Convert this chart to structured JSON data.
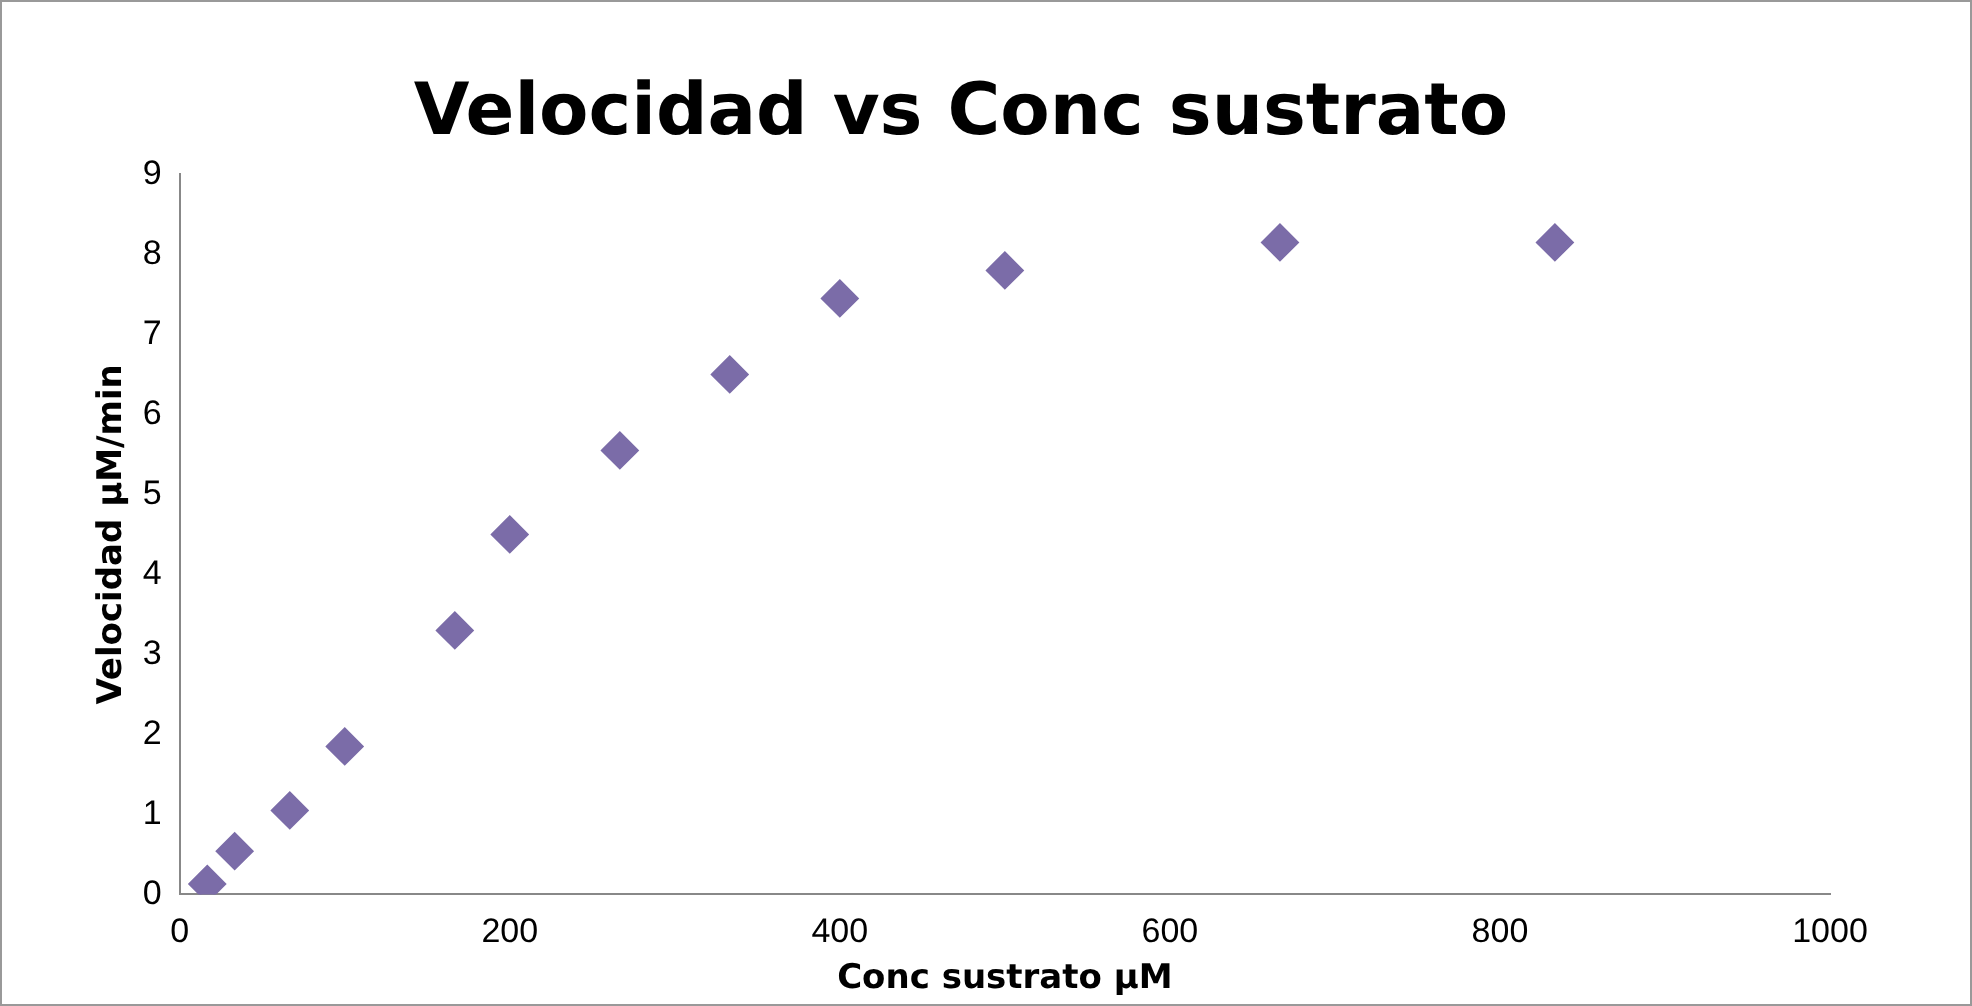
{
  "chart_data": {
    "type": "scatter",
    "title": "Velocidad vs Conc sustrato",
    "xlabel": "Conc sustrato µM",
    "ylabel": "Velocidad µM/min",
    "x": [
      16.7,
      33.3,
      66.7,
      100,
      166.7,
      200,
      266.7,
      333.3,
      400,
      500,
      666.7,
      833.3
    ],
    "series": [
      {
        "color": "#7b6ca8",
        "values": [
          0.13,
          0.54,
          1.05,
          1.85,
          3.3,
          4.5,
          5.55,
          6.5,
          7.45,
          7.8,
          8.15,
          8.15
        ]
      }
    ],
    "marker": "diamond",
    "grid": false,
    "legend": false,
    "xlim": [
      0,
      1000
    ],
    "xticks": [
      0,
      200,
      400,
      600,
      800,
      1000
    ],
    "ylim": [
      0,
      9
    ],
    "yticks": [
      0,
      1,
      2,
      3,
      4,
      5,
      6,
      7,
      8,
      9
    ]
  }
}
